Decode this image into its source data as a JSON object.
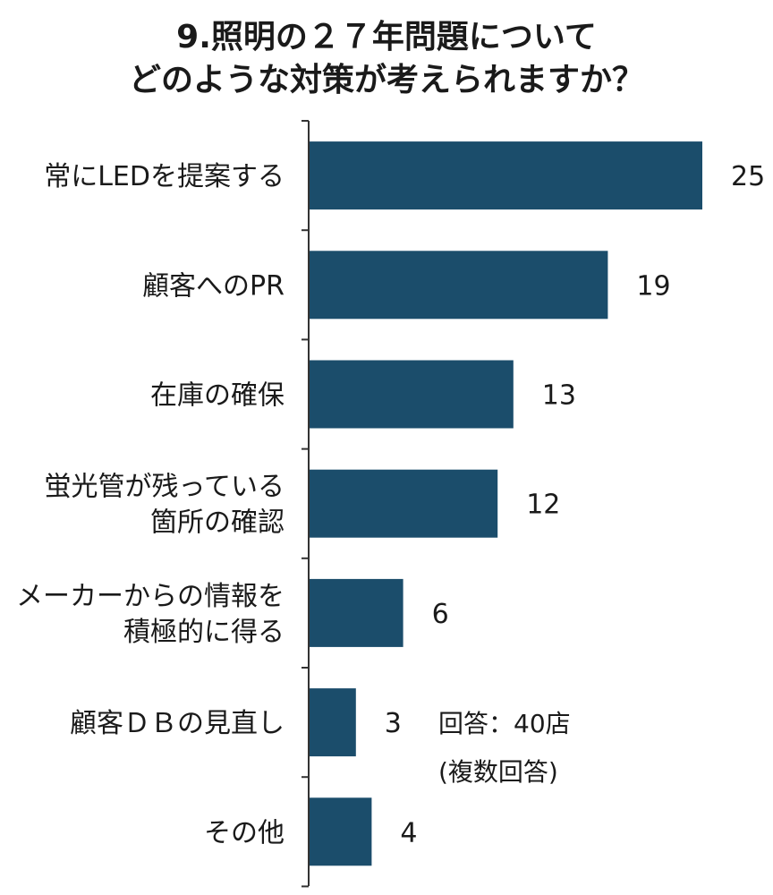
{
  "chart_data": {
    "type": "bar",
    "orientation": "horizontal",
    "title": [
      "9.照明の２７年問題について",
      "どのような対策が考えられますか？"
    ],
    "categories": [
      [
        "常にLEDを提案する"
      ],
      [
        "顧客へのPR"
      ],
      [
        "在庫の確保"
      ],
      [
        "蛍光管が残っている",
        "箇所の確認"
      ],
      [
        "メーカーからの情報を",
        "積極的に得る"
      ],
      [
        "顧客ＤＢの見直し"
      ],
      [
        "その他"
      ]
    ],
    "values": [
      25,
      19,
      13,
      12,
      6,
      3,
      4
    ],
    "xlim": [
      0,
      25
    ],
    "grid": false,
    "legend": "none",
    "annotation": [
      "回答：40店",
      "(複数回答)"
    ],
    "colors": {
      "bar": "#1b4d6b"
    }
  }
}
